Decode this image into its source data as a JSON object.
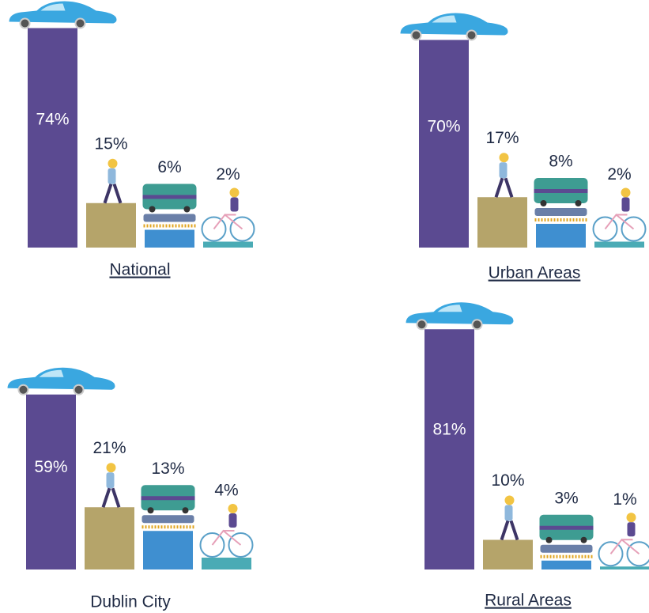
{
  "chart_data": [
    {
      "type": "bar",
      "title": "National",
      "underline": true,
      "categories": [
        null,
        null,
        null,
        null
      ],
      "values": [
        74,
        15,
        6,
        2
      ],
      "value_labels": [
        "74%",
        "15%",
        "6%",
        "2%"
      ],
      "colors": [
        "#5b4a91",
        "#b5a46a",
        "#3f8fd0",
        "#4aabb5"
      ]
    },
    {
      "type": "bar",
      "title": "Urban Areas",
      "underline": true,
      "categories": [
        null,
        null,
        null,
        null
      ],
      "values": [
        70,
        17,
        8,
        2
      ],
      "value_labels": [
        "70%",
        "17%",
        "8%",
        "2%"
      ],
      "colors": [
        "#5b4a91",
        "#b5a46a",
        "#3f8fd0",
        "#4aabb5"
      ]
    },
    {
      "type": "bar",
      "title": "Dublin City",
      "underline": false,
      "categories": [
        null,
        null,
        null,
        null
      ],
      "values": [
        59,
        21,
        13,
        4
      ],
      "value_labels": [
        "59%",
        "21%",
        "13%",
        "4%"
      ],
      "colors": [
        "#5b4a91",
        "#b5a46a",
        "#3f8fd0",
        "#4aabb5"
      ]
    },
    {
      "type": "bar",
      "title": "Rural Areas",
      "underline": true,
      "categories": [
        null,
        null,
        null,
        null
      ],
      "values": [
        81,
        10,
        3,
        1
      ],
      "value_labels": [
        "81%",
        "10%",
        "3%",
        "1%"
      ],
      "colors": [
        "#5b4a91",
        "#b5a46a",
        "#3f8fd0",
        "#4aabb5"
      ]
    }
  ]
}
